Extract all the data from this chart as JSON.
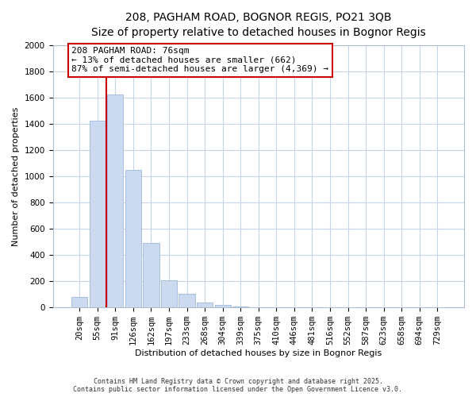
{
  "title_line1": "208, PAGHAM ROAD, BOGNOR REGIS, PO21 3QB",
  "title_line2": "Size of property relative to detached houses in Bognor Regis",
  "xlabel": "Distribution of detached houses by size in Bognor Regis",
  "ylabel": "Number of detached properties",
  "bar_labels": [
    "20sqm",
    "55sqm",
    "91sqm",
    "126sqm",
    "162sqm",
    "197sqm",
    "233sqm",
    "268sqm",
    "304sqm",
    "339sqm",
    "375sqm",
    "410sqm",
    "446sqm",
    "481sqm",
    "516sqm",
    "552sqm",
    "587sqm",
    "623sqm",
    "658sqm",
    "694sqm",
    "729sqm"
  ],
  "bar_values": [
    80,
    1420,
    1620,
    1050,
    490,
    205,
    105,
    40,
    20,
    5,
    0,
    0,
    0,
    0,
    0,
    0,
    0,
    0,
    0,
    0,
    0
  ],
  "bar_color": "#ccdaf0",
  "bar_edge_color": "#a8c0e0",
  "ylim": [
    0,
    2000
  ],
  "yticks": [
    0,
    200,
    400,
    600,
    800,
    1000,
    1200,
    1400,
    1600,
    1800,
    2000
  ],
  "vline_x": 1.5,
  "vline_color": "#cc0000",
  "annotation_title": "208 PAGHAM ROAD: 76sqm",
  "annotation_line1": "← 13% of detached houses are smaller (662)",
  "annotation_line2": "87% of semi-detached houses are larger (4,369) →",
  "annotation_box_color": "#ffffff",
  "annotation_box_edge": "#cc0000",
  "footer_line1": "Contains HM Land Registry data © Crown copyright and database right 2025.",
  "footer_line2": "Contains public sector information licensed under the Open Government Licence v3.0.",
  "background_color": "#ffffff",
  "grid_color": "#c8d4e8",
  "title_fontsize": 10,
  "subtitle_fontsize": 9,
  "annot_fontsize": 8,
  "axis_label_fontsize": 8,
  "tick_fontsize": 7.5,
  "footer_fontsize": 6
}
